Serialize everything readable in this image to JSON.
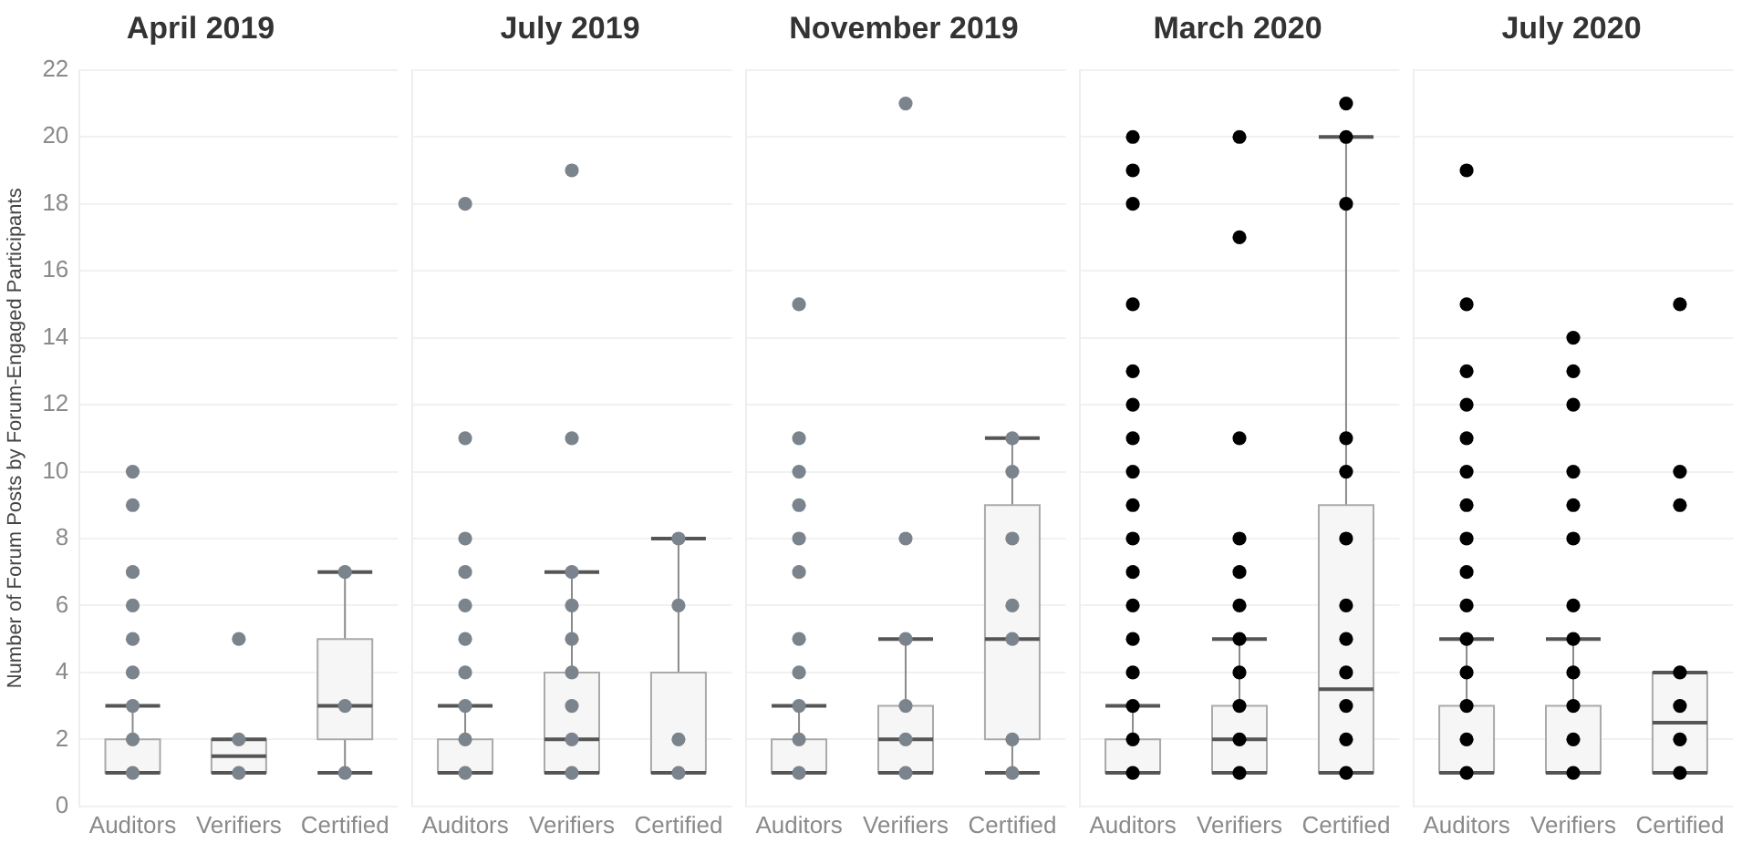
{
  "chart_data": [
    {
      "type": "box",
      "title": "April 2019",
      "ylabel": "Number of Forum Posts by Forum-Engaged Participants",
      "categories": [
        "Auditors",
        "Verifiers",
        "Certified"
      ],
      "ylim": [
        0,
        22
      ],
      "yticks": [
        0,
        2,
        4,
        6,
        8,
        10,
        12,
        14,
        16,
        18,
        20,
        22
      ],
      "grid": "y",
      "marker": "circle",
      "boxes": [
        {
          "low": 1,
          "q1": 1,
          "median": 1,
          "q3": 2,
          "high": 3
        },
        {
          "low": 1,
          "q1": 1,
          "median": 1.5,
          "q3": 2,
          "high": 2
        },
        {
          "low": 1,
          "q1": 2,
          "median": 3,
          "q3": 5,
          "high": 7
        }
      ],
      "series": [
        {
          "type": "scatter",
          "color": "#7b848c",
          "x": [
            "Auditors",
            "Auditors",
            "Auditors",
            "Auditors",
            "Auditors",
            "Auditors",
            "Auditors",
            "Auditors",
            "Auditors",
            "Verifiers",
            "Verifiers",
            "Verifiers",
            "Certified",
            "Certified",
            "Certified"
          ],
          "values": [
            1,
            2,
            3,
            4,
            5,
            6,
            7,
            9,
            10,
            1,
            2,
            5,
            1,
            3,
            7
          ]
        }
      ]
    },
    {
      "type": "box",
      "title": "July 2019",
      "categories": [
        "Auditors",
        "Verifiers",
        "Certified"
      ],
      "ylim": [
        0,
        22
      ],
      "yticks": [
        0,
        2,
        4,
        6,
        8,
        10,
        12,
        14,
        16,
        18,
        20,
        22
      ],
      "grid": "y",
      "marker": "circle",
      "tick_labels": "x",
      "boxes": [
        {
          "low": 1,
          "q1": 1,
          "median": 1,
          "q3": 2,
          "high": 3
        },
        {
          "low": 1,
          "q1": 1,
          "median": 2,
          "q3": 4,
          "high": 7
        },
        {
          "low": 1,
          "q1": 1,
          "median": 1,
          "q3": 4,
          "high": 8
        }
      ],
      "series": [
        {
          "type": "scatter",
          "color": "#7b848c",
          "x": [
            "Auditors",
            "Auditors",
            "Auditors",
            "Auditors",
            "Auditors",
            "Auditors",
            "Auditors",
            "Auditors",
            "Auditors",
            "Auditors",
            "Verifiers",
            "Verifiers",
            "Verifiers",
            "Verifiers",
            "Verifiers",
            "Verifiers",
            "Verifiers",
            "Verifiers",
            "Verifiers",
            "Certified",
            "Certified",
            "Certified",
            "Certified"
          ],
          "values": [
            1,
            2,
            3,
            4,
            5,
            6,
            7,
            8,
            11,
            18,
            1,
            2,
            3,
            4,
            5,
            6,
            7,
            11,
            19,
            1,
            2,
            6,
            8
          ]
        }
      ]
    },
    {
      "type": "box",
      "title": "November 2019",
      "categories": [
        "Auditors",
        "Verifiers",
        "Certified"
      ],
      "ylim": [
        0,
        22
      ],
      "yticks": [
        0,
        2,
        4,
        6,
        8,
        10,
        12,
        14,
        16,
        18,
        20,
        22
      ],
      "grid": "y",
      "marker": "circle",
      "tick_labels": "x",
      "boxes": [
        {
          "low": 1,
          "q1": 1,
          "median": 1,
          "q3": 2,
          "high": 3
        },
        {
          "low": 1,
          "q1": 1,
          "median": 2,
          "q3": 3,
          "high": 5
        },
        {
          "low": 1,
          "q1": 2,
          "median": 5,
          "q3": 9,
          "high": 11
        }
      ],
      "series": [
        {
          "type": "scatter",
          "color": "#7b848c",
          "x": [
            "Auditors",
            "Auditors",
            "Auditors",
            "Auditors",
            "Auditors",
            "Auditors",
            "Auditors",
            "Auditors",
            "Auditors",
            "Auditors",
            "Auditors",
            "Verifiers",
            "Verifiers",
            "Verifiers",
            "Verifiers",
            "Verifiers",
            "Verifiers",
            "Certified",
            "Certified",
            "Certified",
            "Certified",
            "Certified",
            "Certified",
            "Certified"
          ],
          "values": [
            1,
            2,
            3,
            4,
            5,
            7,
            8,
            9,
            10,
            11,
            15,
            1,
            2,
            3,
            5,
            8,
            21,
            1,
            2,
            5,
            6,
            8,
            10,
            11
          ]
        }
      ]
    },
    {
      "type": "box",
      "title": "March 2020",
      "categories": [
        "Auditors",
        "Verifiers",
        "Certified"
      ],
      "ylim": [
        0,
        22
      ],
      "yticks": [
        0,
        2,
        4,
        6,
        8,
        10,
        12,
        14,
        16,
        18,
        20,
        22
      ],
      "grid": "y",
      "marker": "circle",
      "tick_labels": "x",
      "boxes": [
        {
          "low": 1,
          "q1": 1,
          "median": 1,
          "q3": 2,
          "high": 3
        },
        {
          "low": 1,
          "q1": 1,
          "median": 2,
          "q3": 3,
          "high": 5
        },
        {
          "low": 1,
          "q1": 1,
          "median": 3.5,
          "q3": 9,
          "high": 20
        }
      ],
      "series": [
        {
          "type": "scatter",
          "color": "#000000",
          "x": [
            "Auditors",
            "Auditors",
            "Auditors",
            "Auditors",
            "Auditors",
            "Auditors",
            "Auditors",
            "Auditors",
            "Auditors",
            "Auditors",
            "Auditors",
            "Auditors",
            "Auditors",
            "Auditors",
            "Auditors",
            "Auditors",
            "Auditors",
            "Verifiers",
            "Verifiers",
            "Verifiers",
            "Verifiers",
            "Verifiers",
            "Verifiers",
            "Verifiers",
            "Verifiers",
            "Verifiers",
            "Verifiers",
            "Verifiers",
            "Certified",
            "Certified",
            "Certified",
            "Certified",
            "Certified",
            "Certified",
            "Certified",
            "Certified",
            "Certified",
            "Certified",
            "Certified",
            "Certified"
          ],
          "values": [
            1,
            2,
            3,
            4,
            5,
            6,
            7,
            8,
            9,
            10,
            11,
            12,
            13,
            15,
            18,
            19,
            20,
            1,
            2,
            3,
            4,
            5,
            6,
            7,
            8,
            11,
            17,
            20,
            1,
            2,
            3,
            4,
            5,
            6,
            8,
            10,
            11,
            18,
            20,
            21
          ]
        }
      ]
    },
    {
      "type": "box",
      "title": "July 2020",
      "categories": [
        "Auditors",
        "Verifiers",
        "Certified"
      ],
      "ylim": [
        0,
        22
      ],
      "yticks": [
        0,
        2,
        4,
        6,
        8,
        10,
        12,
        14,
        16,
        18,
        20,
        22
      ],
      "grid": "y",
      "marker": "circle",
      "tick_labels": "x",
      "boxes": [
        {
          "low": 1,
          "q1": 1,
          "median": 1,
          "q3": 3,
          "high": 5
        },
        {
          "low": 1,
          "q1": 1,
          "median": 1,
          "q3": 3,
          "high": 5
        },
        {
          "low": 1,
          "q1": 1,
          "median": 2.5,
          "q3": 4,
          "high": 4
        }
      ],
      "series": [
        {
          "type": "scatter",
          "color": "#000000",
          "x": [
            "Auditors",
            "Auditors",
            "Auditors",
            "Auditors",
            "Auditors",
            "Auditors",
            "Auditors",
            "Auditors",
            "Auditors",
            "Auditors",
            "Auditors",
            "Auditors",
            "Auditors",
            "Auditors",
            "Auditors",
            "Verifiers",
            "Verifiers",
            "Verifiers",
            "Verifiers",
            "Verifiers",
            "Verifiers",
            "Verifiers",
            "Verifiers",
            "Verifiers",
            "Verifiers",
            "Verifiers",
            "Verifiers",
            "Certified",
            "Certified",
            "Certified",
            "Certified",
            "Certified",
            "Certified",
            "Certified"
          ],
          "values": [
            1,
            2,
            3,
            4,
            5,
            6,
            7,
            8,
            9,
            10,
            11,
            12,
            13,
            15,
            19,
            1,
            2,
            3,
            4,
            5,
            6,
            8,
            9,
            10,
            12,
            13,
            14,
            1,
            2,
            3,
            4,
            9,
            10,
            15
          ]
        }
      ]
    }
  ]
}
